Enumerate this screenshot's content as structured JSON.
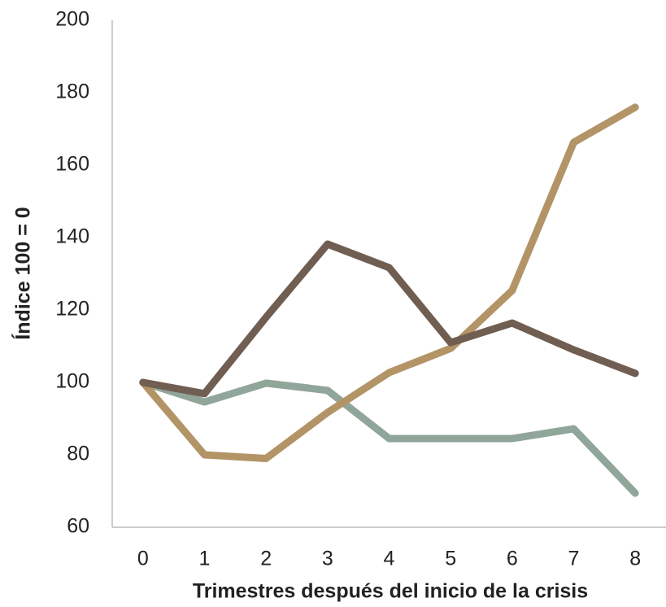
{
  "chart_data": {
    "type": "line",
    "x_label": "Trimestres después del inicio de la crisis",
    "y_label": "Índice 100 = 0",
    "categories": [
      "0",
      "1",
      "2",
      "3",
      "4",
      "5",
      "6",
      "7",
      "8"
    ],
    "series": [
      {
        "color": "#91a69a",
        "values": [
          100,
          94.6,
          99.8,
          97.8,
          84.5,
          84.5,
          84.5,
          87.2,
          69.4
        ]
      },
      {
        "color": "#b39467",
        "values": [
          100,
          80,
          79,
          91.7,
          102.7,
          109.4,
          125.4,
          166.3,
          176
        ]
      },
      {
        "color": "#715e52",
        "values": [
          100,
          96.9,
          118,
          138.2,
          131.7,
          111,
          116.4,
          109,
          102.5
        ]
      }
    ],
    "ylim": [
      60,
      200
    ],
    "yticks": [
      60,
      80,
      100,
      120,
      140,
      160,
      180,
      200
    ]
  }
}
